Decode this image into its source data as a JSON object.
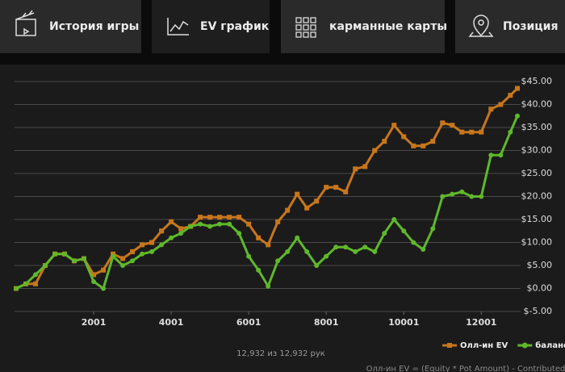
{
  "tabs": [
    "История игры",
    "EV график",
    "карманные карты",
    "Позиция"
  ],
  "chart_data": {
    "type": "line",
    "x": [
      1,
      251,
      501,
      751,
      1001,
      1251,
      1501,
      1751,
      2001,
      2251,
      2501,
      2751,
      3001,
      3251,
      3501,
      3751,
      4001,
      4251,
      4501,
      4751,
      5001,
      5251,
      5501,
      5751,
      6001,
      6251,
      6501,
      6751,
      7001,
      7251,
      7501,
      7751,
      8001,
      8251,
      8501,
      8751,
      9001,
      9251,
      9501,
      9751,
      10001,
      10251,
      10501,
      10751,
      11001,
      11251,
      11501,
      11751,
      12001,
      12251,
      12501,
      12751,
      12932
    ],
    "series": [
      {
        "name": "Олл-ин EV",
        "color": "#c8761c",
        "marker": "square",
        "values": [
          0,
          1,
          1,
          5,
          7.5,
          7.5,
          6,
          6.5,
          3,
          4,
          7.5,
          6.5,
          8,
          9.5,
          10,
          12.5,
          14.5,
          13,
          13.5,
          15.5,
          15.5,
          15.5,
          15.5,
          15.5,
          14,
          11,
          9.5,
          14.5,
          17,
          20.5,
          17.5,
          19,
          22,
          22,
          21,
          26,
          26.5,
          30,
          32,
          35.5,
          33,
          31,
          31,
          32,
          36,
          35.5,
          34,
          34,
          34,
          39,
          40,
          42,
          43.5
        ]
      },
      {
        "name": "баланс",
        "color": "#5fb82a",
        "marker": "circle",
        "values": [
          0,
          1,
          3,
          5,
          7.5,
          7.5,
          6,
          6.5,
          1.5,
          0,
          7,
          5,
          6,
          7.5,
          8,
          9.5,
          11,
          12,
          13.5,
          14,
          13.5,
          14,
          14,
          12,
          7,
          4,
          0.5,
          6,
          8,
          11,
          8,
          5,
          7,
          9,
          9,
          8,
          9,
          8,
          12,
          15,
          12.5,
          10,
          8.5,
          13,
          20,
          20.5,
          21,
          20,
          20,
          29,
          29,
          34,
          37.5
        ]
      }
    ],
    "xlim": [
      1,
      12932
    ],
    "ylim": [
      -5,
      45
    ],
    "xticks": [
      2001,
      4001,
      6001,
      8001,
      10001,
      12001
    ],
    "yticks": [
      {
        "value": 45,
        "label": "$45.00"
      },
      {
        "value": 40,
        "label": "$40.00"
      },
      {
        "value": 35,
        "label": "$35.00"
      },
      {
        "value": 30,
        "label": "$30.00"
      },
      {
        "value": 25,
        "label": "$25.00"
      },
      {
        "value": 20,
        "label": "$20.00"
      },
      {
        "value": 15,
        "label": "$15.00"
      },
      {
        "value": 10,
        "label": "$10.00"
      },
      {
        "value": 5,
        "label": "$5.00"
      },
      {
        "value": 0,
        "label": "$0.00"
      },
      {
        "value": -5,
        "label": "$-5.00"
      }
    ],
    "grid": true,
    "legend": "bottom-right"
  },
  "footer": {
    "count": "12,932 из 12,932 рук",
    "note": "Олл-ин EV = (Equity * Pot Amount) - Contributed"
  }
}
